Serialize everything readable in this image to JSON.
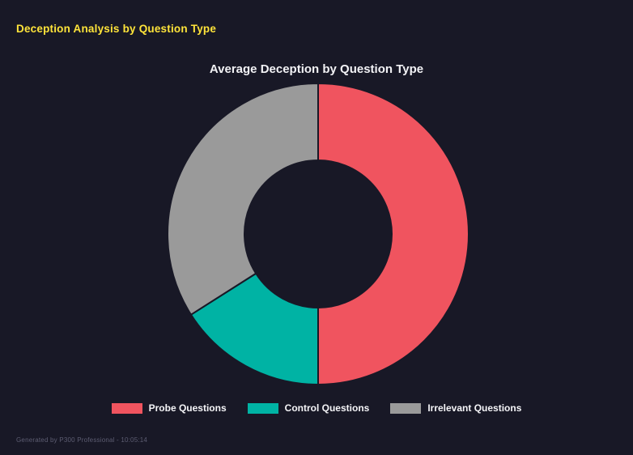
{
  "header": {
    "title": "Deception Analysis by Question Type"
  },
  "chart_data": {
    "type": "pie",
    "subtype": "doughnut",
    "title": "Average Deception by Question Type",
    "labels": [
      "Probe Questions",
      "Control Questions",
      "Irrelevant Questions"
    ],
    "values": [
      50,
      16,
      34
    ],
    "values_note": "estimated percent share of donut arc",
    "colors": [
      "#f0545f",
      "#00b3a4",
      "#9a9a9a"
    ],
    "legend_position": "bottom",
    "donut_hole_ratio": 0.49,
    "start_angle_deg": 0,
    "direction": "clockwise"
  },
  "footer": {
    "text": "Generated by P300 Professional - 10:05:14"
  },
  "colors": {
    "background": "#181826",
    "page_title": "#ffe43a",
    "chart_title": "#f2f2f5",
    "legend_text": "#f5f5f8",
    "footer_text": "#5d5d72"
  }
}
